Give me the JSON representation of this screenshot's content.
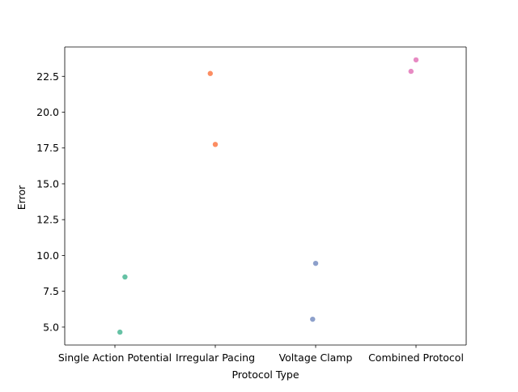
{
  "chart_data": {
    "type": "scatter",
    "title": "",
    "xlabel": "Protocol Type",
    "ylabel": "Error",
    "categories": [
      "Single Action Potential",
      "Irregular Pacing",
      "Voltage Clamp",
      "Combined Protocol"
    ],
    "ylim": [
      3.75,
      24.55
    ],
    "yticks": [
      5.0,
      7.5,
      10.0,
      12.5,
      15.0,
      17.5,
      20.0,
      22.5
    ],
    "ytick_labels": [
      "5.0",
      "7.5",
      "10.0",
      "12.5",
      "15.0",
      "17.5",
      "20.0",
      "22.5"
    ],
    "grid": false,
    "legend": "none",
    "series": [
      {
        "category": "Single Action Potential",
        "color": "#66c2a5",
        "points": [
          {
            "jitter": 0.05,
            "y": 4.65
          },
          {
            "jitter": 0.1,
            "y": 8.5
          }
        ]
      },
      {
        "category": "Irregular Pacing",
        "color": "#fc8d62",
        "points": [
          {
            "jitter": -0.05,
            "y": 22.7
          },
          {
            "jitter": 0.0,
            "y": 17.75
          }
        ]
      },
      {
        "category": "Voltage Clamp",
        "color": "#8da0cb",
        "points": [
          {
            "jitter": -0.03,
            "y": 5.55
          },
          {
            "jitter": 0.0,
            "y": 9.45
          }
        ]
      },
      {
        "category": "Combined Protocol",
        "color": "#e78ac3",
        "points": [
          {
            "jitter": -0.05,
            "y": 22.85
          },
          {
            "jitter": 0.0,
            "y": 23.65
          }
        ]
      }
    ]
  }
}
